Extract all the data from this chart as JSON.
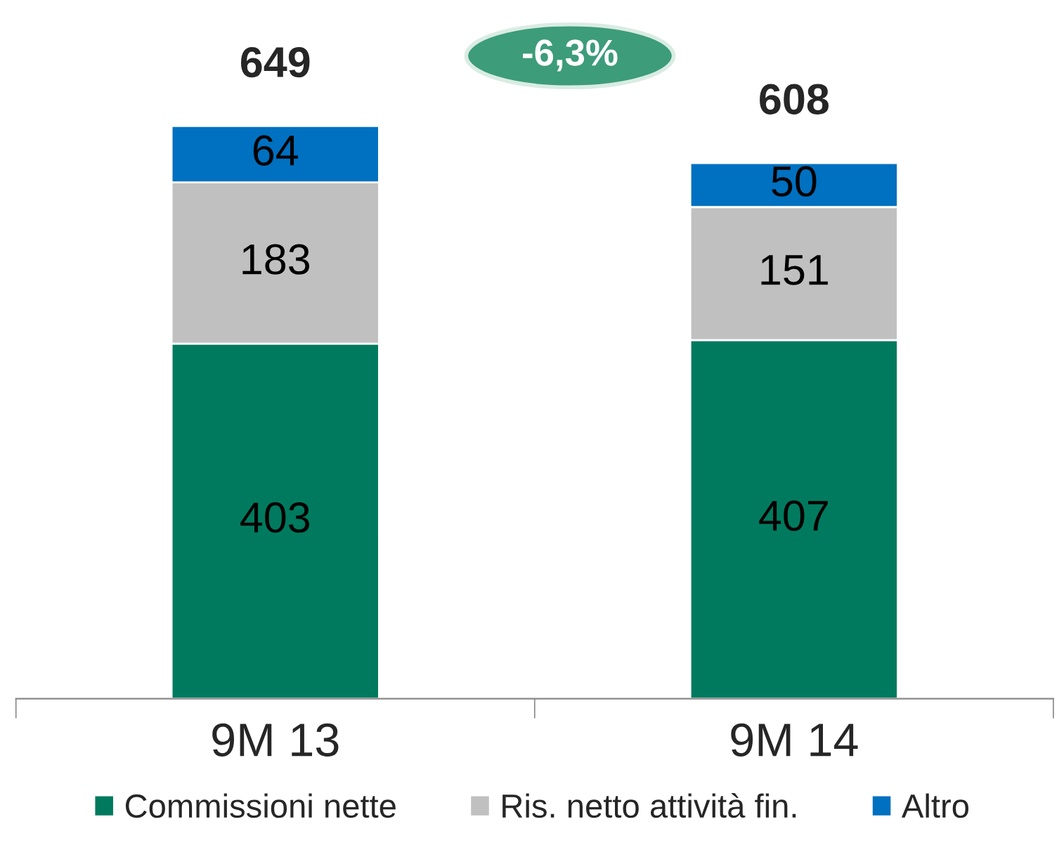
{
  "chart_data": {
    "type": "bar",
    "stacked": true,
    "categories": [
      "9M 13",
      "9M 14"
    ],
    "series": [
      {
        "name": "Commissioni nette",
        "color": "#007a5e",
        "values": [
          403,
          407
        ]
      },
      {
        "name": "Ris. netto attività fin.",
        "color": "#c0c0c0",
        "values": [
          183,
          151
        ]
      },
      {
        "name": "Altro",
        "color": "#0070c0",
        "values": [
          64,
          50
        ]
      }
    ],
    "data_labels": true,
    "totals": [
      "649",
      "608"
    ],
    "annotations": [
      "-6,3%"
    ],
    "legend": "bottom",
    "grid": false
  }
}
